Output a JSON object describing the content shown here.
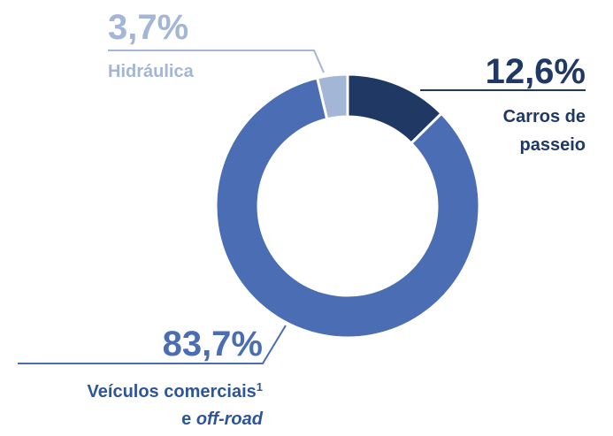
{
  "chart_data": {
    "type": "donut",
    "categories": [
      [
        [
          "Carros de"
        ],
        [
          "passeio"
        ]
      ],
      [
        [
          "Veículos comerciais",
          {
            "text": "1",
            "style": "sup"
          }
        ],
        [
          "e ",
          {
            "text": "off-road",
            "style": "italic"
          }
        ]
      ],
      [
        [
          "Hidráulica"
        ]
      ]
    ],
    "values": [
      12.6,
      83.7,
      3.7
    ],
    "value_labels": [
      "12,6%",
      "83,7%",
      "3,7%"
    ],
    "colors": [
      "#1f3864",
      "#4a6db3",
      "#a3b6d6"
    ]
  }
}
